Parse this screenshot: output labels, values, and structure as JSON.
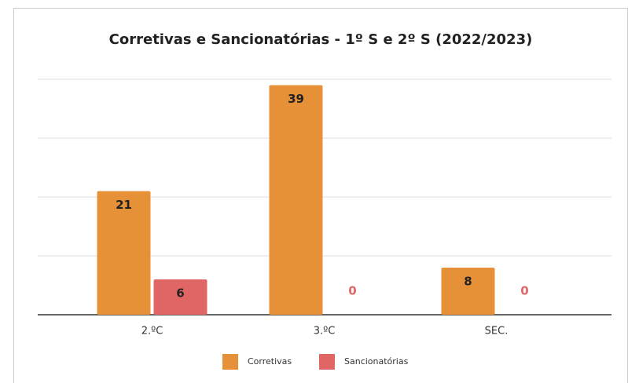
{
  "chart_data": {
    "type": "bar",
    "title": "Corretivas e Sancionatórias -  1º S  e  2º S  (2022/2023)",
    "categories": [
      "2.ºC",
      "3.ºC",
      "SEC."
    ],
    "series": [
      {
        "name": "Corretivas",
        "color": "#e69138",
        "values": [
          21,
          39,
          8
        ]
      },
      {
        "name": "Sancionatórias",
        "color": "#e06666",
        "values": [
          6,
          0,
          0
        ]
      }
    ],
    "ylim": [
      0,
      40
    ],
    "yticks": [
      0,
      10,
      20,
      30,
      40
    ],
    "grid": true,
    "legend": "bottom"
  }
}
